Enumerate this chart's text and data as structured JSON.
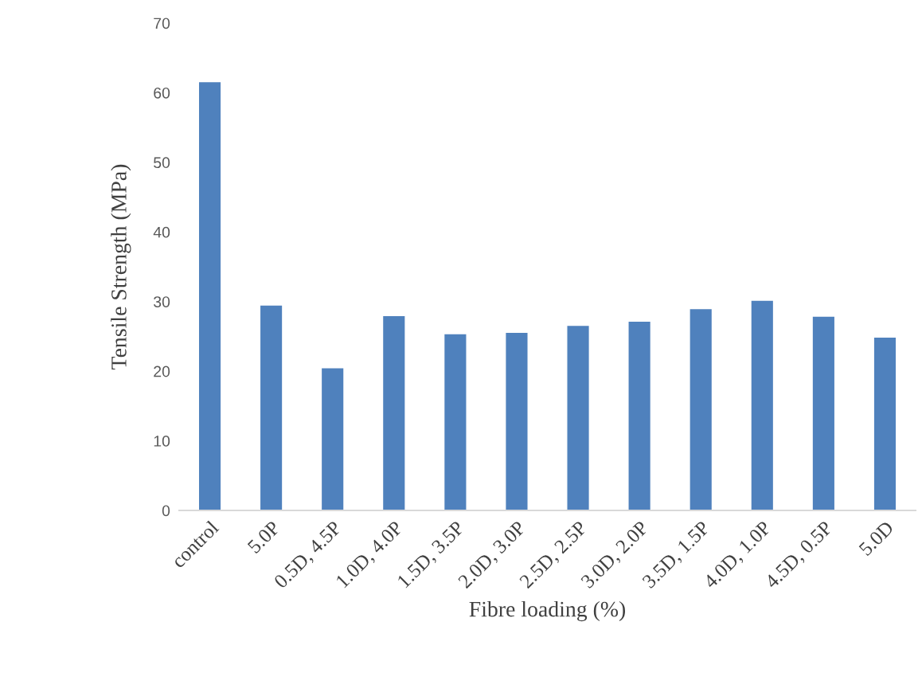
{
  "chart_data": {
    "type": "bar",
    "xlabel": "Fibre loading (%)",
    "ylabel": "Tensile Strength (MPa)",
    "categories": [
      "control",
      "5.0P",
      "0.5D, 4.5P",
      "1.0D, 4.0P",
      "1.5D, 3.5P",
      "2.0D, 3.0P",
      "2.5D, 2.5P",
      "3.0D, 2.0P",
      "3.5D, 1.5P",
      "4.0D, 1.0P",
      "4.5D, 0.5P",
      "5.0D"
    ],
    "values": [
      61.6,
      29.5,
      20.5,
      28.0,
      25.4,
      25.6,
      26.6,
      27.2,
      29.0,
      30.2,
      27.9,
      24.9
    ],
    "color": "#4f81bd",
    "ylim": [
      0,
      70
    ],
    "yticks": [
      0,
      10,
      20,
      30,
      40,
      50,
      60,
      70
    ],
    "grid": false,
    "legend": false
  }
}
